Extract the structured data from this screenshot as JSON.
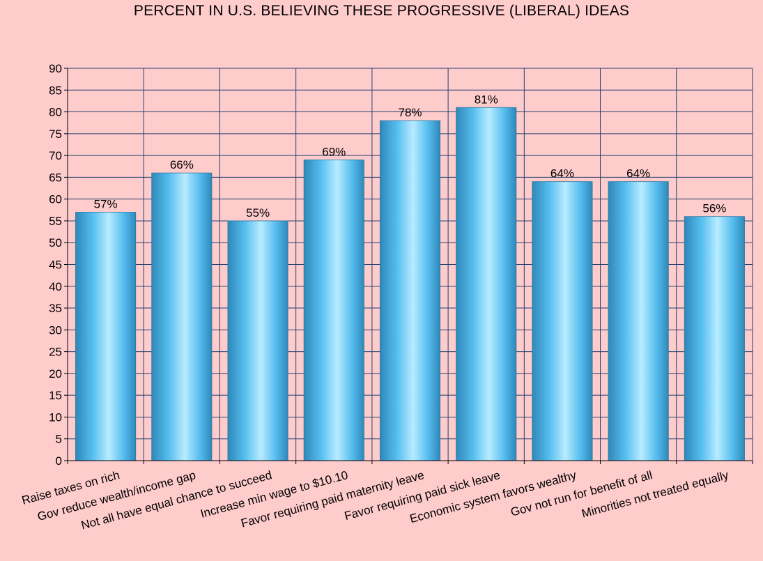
{
  "chart_data": {
    "type": "bar",
    "title": "PERCENT IN U.S. BELIEVING THESE PROGRESSIVE (LIBERAL) IDEAS",
    "categories": [
      "Raise taxes on rich",
      "Gov reduce wealth/income gap",
      "Not all have equal chance to succeed",
      "Increase min wage to $10.10",
      "Favor requiring paid maternity leave",
      "Favor requiring paid sick leave",
      "Economic system favors wealthy",
      "Gov not run for benefit of all",
      "Minorities not treated equally"
    ],
    "values": [
      57,
      66,
      55,
      69,
      78,
      81,
      64,
      64,
      56
    ],
    "data_labels": [
      "57%",
      "66%",
      "55%",
      "69%",
      "78%",
      "81%",
      "64%",
      "64%",
      "56%"
    ],
    "ylim": [
      0,
      90
    ],
    "ytick_step": 5,
    "xlabel": "",
    "ylabel": "",
    "grid": true,
    "legend": "none",
    "colors": {
      "background": "#ffcccc",
      "plot_background": "#ffcccc",
      "grid": "#1f3f6f",
      "bar_light": "#b8ecff",
      "bar_mid": "#55bdef",
      "bar_dark": "#2f88b8"
    }
  }
}
